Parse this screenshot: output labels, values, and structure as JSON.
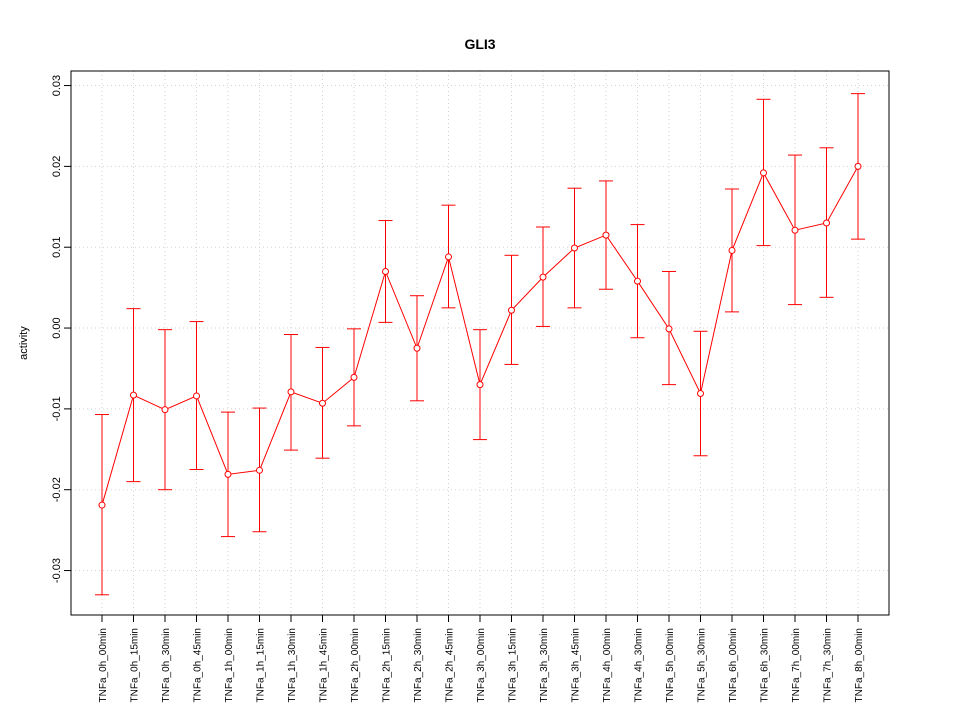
{
  "chart_data": {
    "type": "line",
    "title": "GLI3",
    "xlabel": "",
    "ylabel": "activity",
    "ylim": [
      -0.0355,
      0.0318
    ],
    "yticks": [
      -0.03,
      -0.02,
      -0.01,
      0.0,
      0.01,
      0.02,
      0.03
    ],
    "ytick_labels": [
      "-0.03",
      "-0.02",
      "-0.01",
      "0.00",
      "0.01",
      "0.02",
      "0.03"
    ],
    "grid": true,
    "colors": {
      "series": "#ff0000",
      "grid": "#d3d3d3",
      "axis": "#000000"
    },
    "categories": [
      "TNFa_0h_00min",
      "TNFa_0h_15min",
      "TNFa_0h_30min",
      "TNFa_0h_45min",
      "TNFa_1h_00min",
      "TNFa_1h_15min",
      "TNFa_1h_30min",
      "TNFa_1h_45min",
      "TNFa_2h_00min",
      "TNFa_2h_15min",
      "TNFa_2h_30min",
      "TNFa_2h_45min",
      "TNFa_3h_00min",
      "TNFa_3h_15min",
      "TNFa_3h_30min",
      "TNFa_3h_45min",
      "TNFa_4h_00min",
      "TNFa_4h_30min",
      "TNFa_5h_00min",
      "TNFa_5h_30min",
      "TNFa_6h_00min",
      "TNFa_6h_30min",
      "TNFa_7h_00min",
      "TNFa_7h_30min",
      "TNFa_8h_00min"
    ],
    "series": [
      {
        "values": [
          -0.0219,
          -0.0083,
          -0.0101,
          -0.0084,
          -0.0181,
          -0.0176,
          -0.0079,
          -0.0093,
          -0.0061,
          0.007,
          -0.0025,
          0.0088,
          -0.007,
          0.0022,
          0.0063,
          0.0099,
          0.0115,
          0.0058,
          -0.0001,
          -0.0081,
          0.0096,
          0.0192,
          0.0121,
          0.013,
          0.02
        ],
        "upper": [
          -0.0107,
          0.0024,
          -0.0002,
          0.0008,
          -0.0104,
          -0.0099,
          -0.0008,
          -0.0024,
          -0.0001,
          0.0133,
          0.004,
          0.0152,
          -0.0002,
          0.009,
          0.0125,
          0.0173,
          0.0182,
          0.0128,
          0.007,
          -0.0004,
          0.0172,
          0.0283,
          0.0214,
          0.0223,
          0.029
        ],
        "lower": [
          -0.033,
          -0.019,
          -0.02,
          -0.0175,
          -0.0258,
          -0.0252,
          -0.0151,
          -0.0161,
          -0.0121,
          0.0007,
          -0.009,
          0.0025,
          -0.0138,
          -0.0045,
          0.0002,
          0.0025,
          0.0048,
          -0.0012,
          -0.007,
          -0.0158,
          0.002,
          0.0102,
          0.0029,
          0.0038,
          0.011
        ]
      }
    ]
  }
}
